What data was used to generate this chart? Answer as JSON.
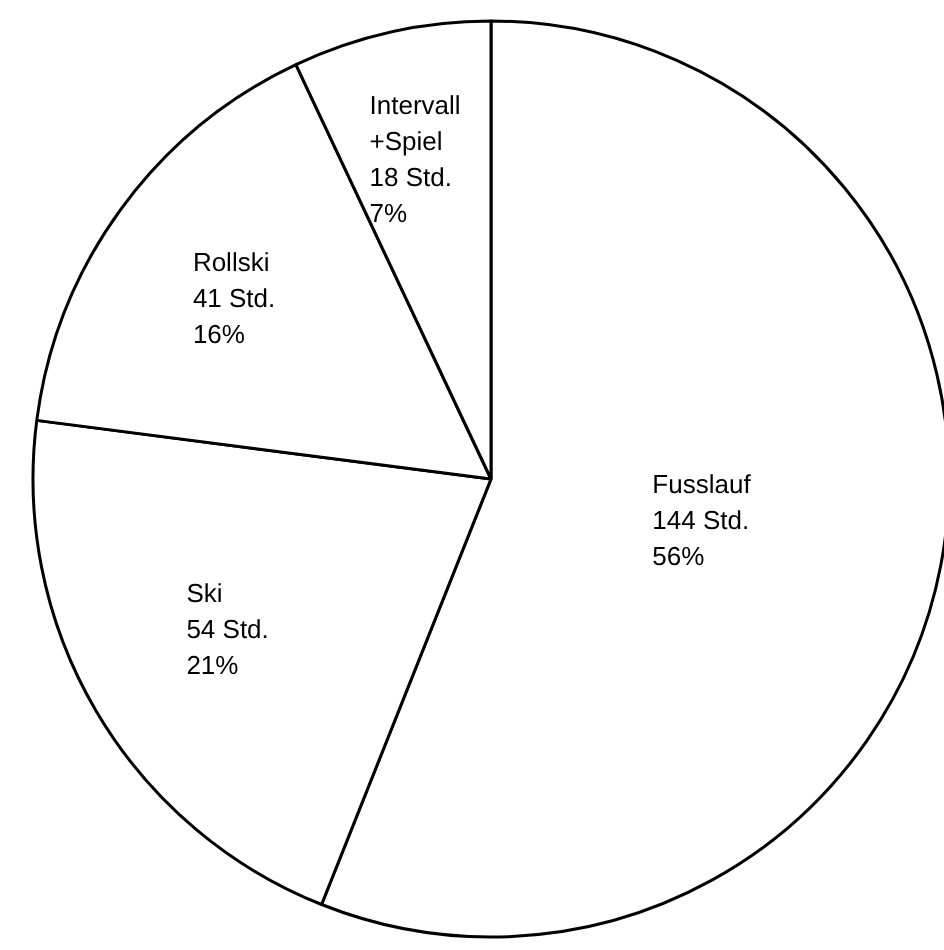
{
  "chart_data": {
    "type": "pie",
    "categories": [
      "Fusslauf",
      "Ski",
      "Rollski",
      "Intervall\n+Spiel"
    ],
    "values": [
      144,
      54,
      41,
      18
    ],
    "value_labels": [
      "144 Std.\n56%",
      "54 Std.\n21%",
      "41 Std.\n16%",
      "18 Std.\n7%"
    ],
    "colors": [
      "#ffffff",
      "#ffffff",
      "#ffffff",
      "#ffffff"
    ]
  }
}
